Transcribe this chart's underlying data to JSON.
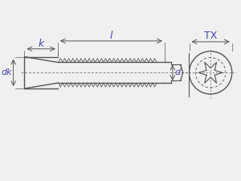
{
  "bg_color": "#f0f0f0",
  "line_color": "#555555",
  "dim_color": "#555555",
  "label_color": "#4444aa",
  "fig_width": 3.0,
  "fig_height": 2.25,
  "dpi": 100,
  "labels": {
    "l": "l",
    "k": "k",
    "dk": "dk",
    "d": "d",
    "TX": "TX"
  }
}
